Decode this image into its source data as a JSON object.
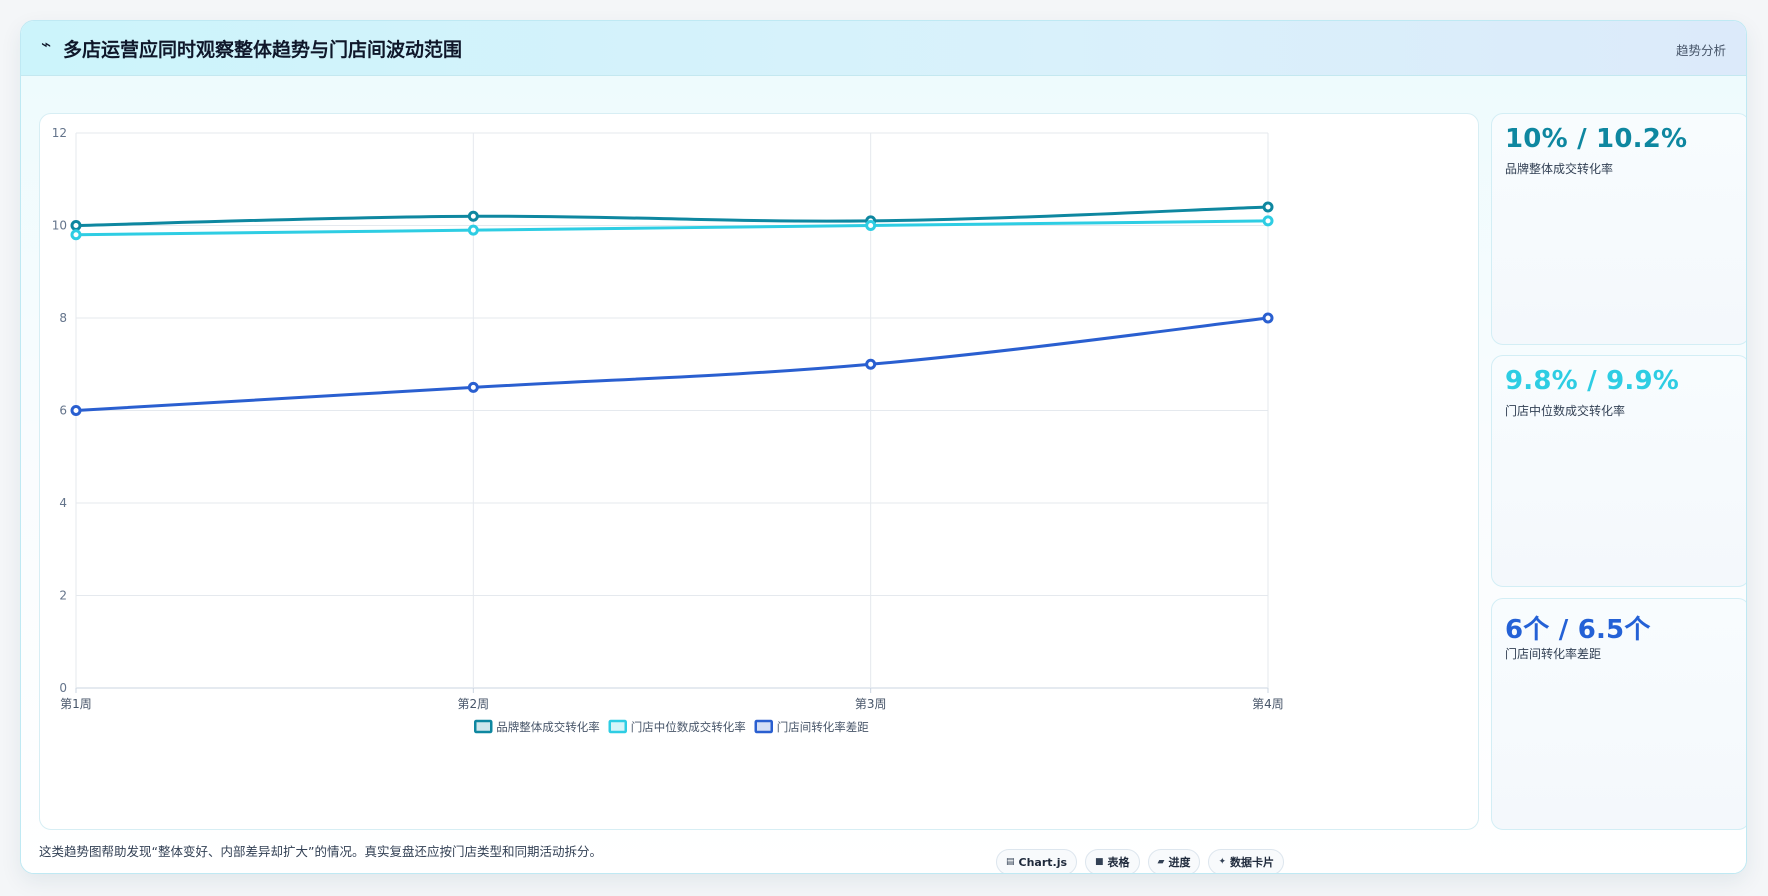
{
  "header": {
    "icon": "pulse-icon",
    "title": "多店运营应同时观察整体趋势与门店间波动范围",
    "tag": "趋势分析"
  },
  "chart_data": {
    "type": "line",
    "categories": [
      "第1周",
      "第2周",
      "第3周",
      "第4周"
    ],
    "series": [
      {
        "name": "品牌整体成交转化率",
        "values": [
          10.0,
          10.2,
          10.1,
          10.4
        ],
        "color": "#0e87a0"
      },
      {
        "name": "门店中位数成交转化率",
        "values": [
          9.8,
          9.9,
          10.0,
          10.1
        ],
        "color": "#2ecde3"
      },
      {
        "name": "门店间转化率差距",
        "values": [
          6.0,
          6.5,
          7.0,
          8.0
        ],
        "color": "#2a5fd0"
      }
    ],
    "ylim": [
      0,
      12
    ],
    "yticks": [
      0,
      2,
      4,
      6,
      8,
      10,
      12
    ],
    "grid": true,
    "legend_position": "bottom"
  },
  "stats": [
    {
      "value": "10% / 10.2%",
      "label": "品牌整体成交转化率",
      "color": "#0e87a0"
    },
    {
      "value": "9.8% / 9.9%",
      "label": "门店中位数成交转化率",
      "color": "#2ecde3"
    },
    {
      "value": "6个 / 6.5个",
      "label": "门店间转化率差距",
      "color": "#2461d6"
    }
  ],
  "footer": {
    "note": "这类趋势图帮助发现“整体变好、内部差异却扩大”的情况。真实复盘还应按门店类型和同期活动拆分。",
    "pills": [
      {
        "icon": "▤",
        "label": "Chart.js"
      },
      {
        "icon": "■",
        "label": "表格"
      },
      {
        "icon": "▰",
        "label": "进度"
      },
      {
        "icon": "✦",
        "label": "数据卡片"
      }
    ]
  }
}
